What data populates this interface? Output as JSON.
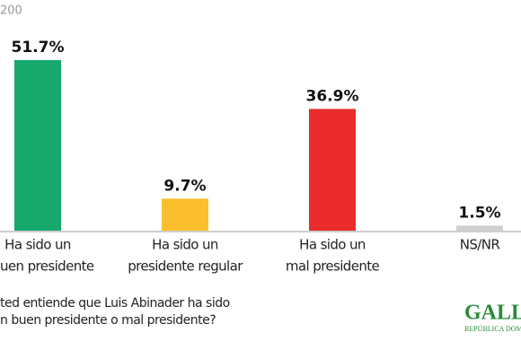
{
  "header": {
    "note": "200"
  },
  "chart_data": {
    "type": "bar",
    "categories": [
      [
        "Ha sido un",
        "uen presidente"
      ],
      [
        "Ha sido un",
        "presidente regular"
      ],
      [
        "Ha sido un",
        "mal presidente"
      ],
      [
        "NS/NR"
      ]
    ],
    "values": [
      51.7,
      9.7,
      36.9,
      1.5
    ],
    "value_labels": [
      "51.7%",
      "9.7%",
      "36.9%",
      "1.5%"
    ],
    "colors": [
      "#17a86b",
      "#fbbf2d",
      "#ea2c2c",
      "#cfcfcf"
    ]
  },
  "footer": {
    "question": [
      "ted entiende que Luis Abinader ha sido",
      "n buen presidente o mal presidente?"
    ],
    "logo": "GALL",
    "logo_sub": "REPÚBLICA DOMI"
  }
}
